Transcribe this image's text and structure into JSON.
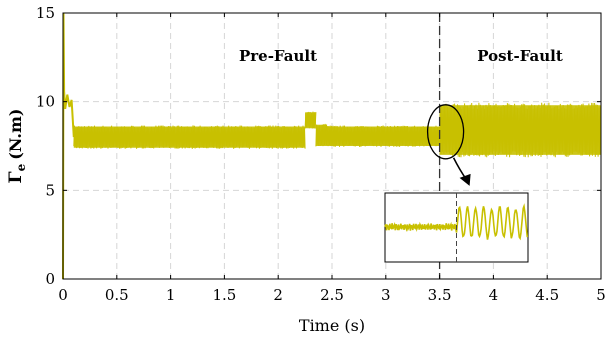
{
  "chart_data": {
    "type": "line",
    "title": "",
    "xlabel": "Time (s)",
    "ylabel_symbol": "Γ",
    "ylabel_subscript": "e",
    "ylabel_unit": "(N.m)",
    "xlim": [
      0,
      5
    ],
    "ylim": [
      0,
      15
    ],
    "x_ticks": [
      0,
      0.5,
      1,
      1.5,
      2,
      2.5,
      3,
      3.5,
      4,
      4.5,
      5
    ],
    "y_ticks": [
      0,
      5,
      10,
      15
    ],
    "x_tick_labels": [
      "0",
      "0.5",
      "1",
      "1.5",
      "2",
      "2.5",
      "3",
      "3.5",
      "4",
      "4.5",
      "5"
    ],
    "y_tick_labels": [
      "0",
      "5",
      "10",
      "15"
    ],
    "grid": true,
    "line_color": "#c8c000",
    "fault_time": 3.5,
    "annotations": {
      "pre_fault": "Pre-Fault",
      "post_fault": "Post-Fault"
    },
    "series": [
      {
        "bands": [
          {
            "x": [
              0.1,
              2.25
            ],
            "ymin": 7.4,
            "ymax": 8.6
          },
          {
            "x": [
              2.25,
              2.35
            ],
            "ymin": 8.5,
            "ymax": 9.4
          },
          {
            "x": [
              2.35,
              2.45
            ],
            "ymin": 7.5,
            "ymax": 8.7
          },
          {
            "x": [
              2.45,
              3.5
            ],
            "ymin": 7.5,
            "ymax": 8.6
          },
          {
            "x": [
              3.5,
              5.0
            ],
            "ymin": 7.0,
            "ymax": 9.8
          }
        ],
        "startup": [
          [
            0.0,
            0.0
          ],
          [
            0.005,
            15.0
          ],
          [
            0.01,
            10.6
          ],
          [
            0.02,
            9.6
          ],
          [
            0.04,
            10.4
          ],
          [
            0.06,
            9.7
          ],
          [
            0.08,
            10.1
          ],
          [
            0.1,
            8.0
          ]
        ]
      }
    ],
    "inset": {
      "x_range": [
        3.0,
        4.0
      ],
      "pre": {
        "ymin": 7.7,
        "ymax": 8.4
      },
      "post": {
        "ymin": 6.9,
        "ymax": 9.9
      }
    }
  }
}
